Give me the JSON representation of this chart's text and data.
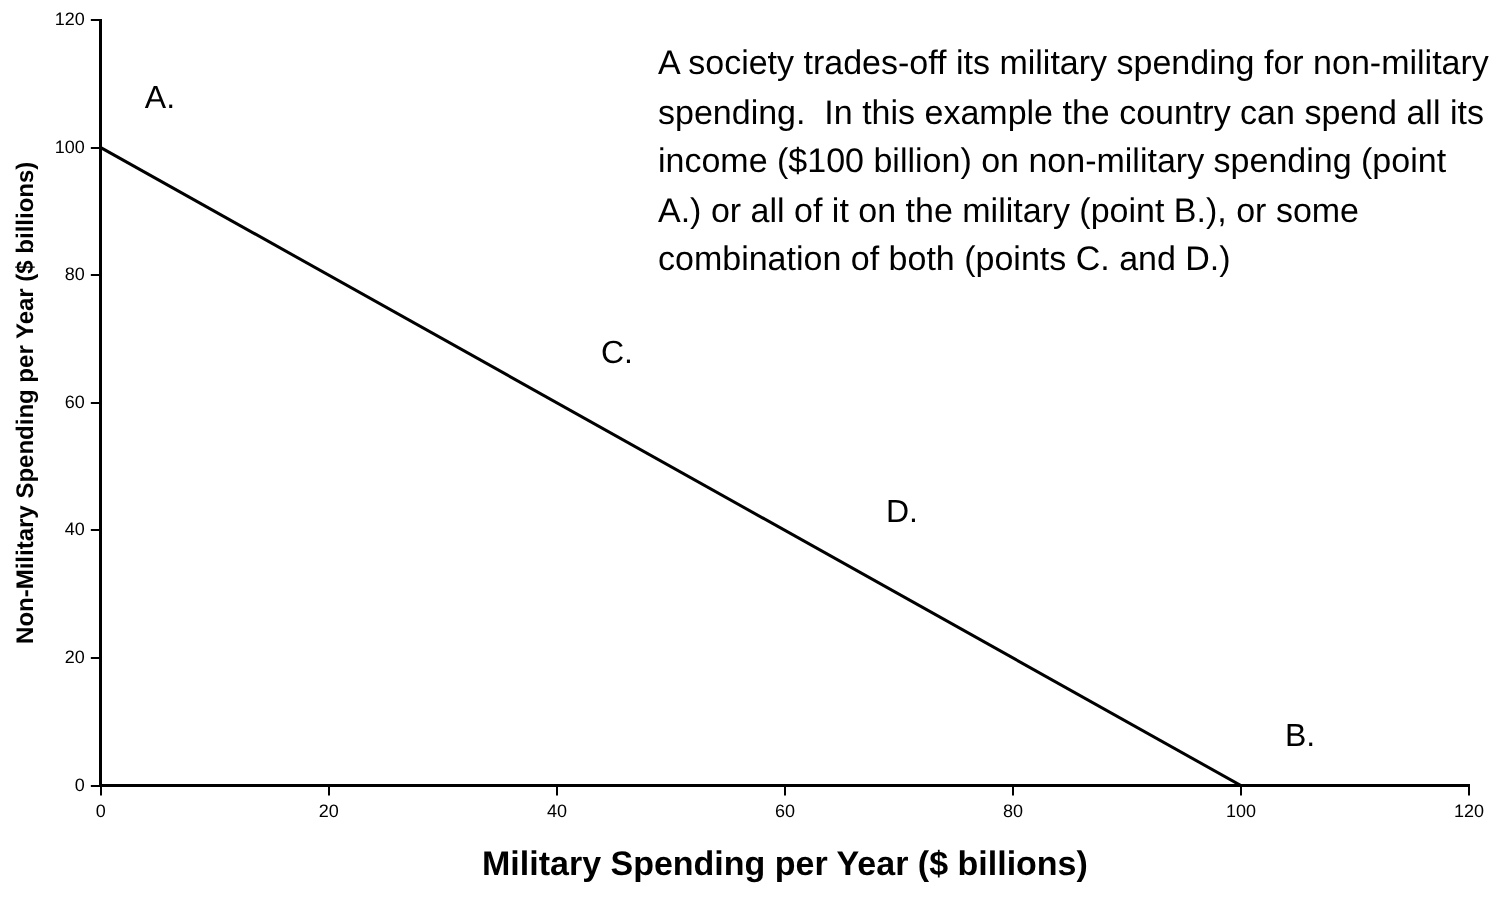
{
  "chart_data": {
    "type": "line",
    "xlabel": "Military Spending per Year ($ billions)",
    "ylabel": "Non-Military Spending per Year ($ billions)",
    "x": [
      0,
      100
    ],
    "series": [
      {
        "color": "#000000",
        "values": [
          100,
          0
        ]
      }
    ],
    "xlim": [
      0,
      120
    ],
    "xticks": [
      0,
      20,
      40,
      60,
      80,
      100,
      120
    ],
    "ylim": [
      0,
      120
    ],
    "yticks": [
      0,
      20,
      40,
      60,
      80,
      100,
      120
    ],
    "marker": "none",
    "line_style": "solid",
    "grid": false,
    "legend": false,
    "annotations": [
      {
        "text": "A.",
        "x": 0,
        "y": 100
      },
      {
        "text": "B.",
        "x": 100,
        "y": 0
      },
      {
        "text": "C.",
        "x": 40,
        "y": 60
      },
      {
        "text": "D.",
        "x": 65,
        "y": 35
      },
      "A society trades-off its military spending for non-military spending.  In this example the country can spend all its income ($100 billion) on non-military spending (point A.) or all of it on the military (point B.), or some combination of both (points C. and D.)"
    ]
  }
}
